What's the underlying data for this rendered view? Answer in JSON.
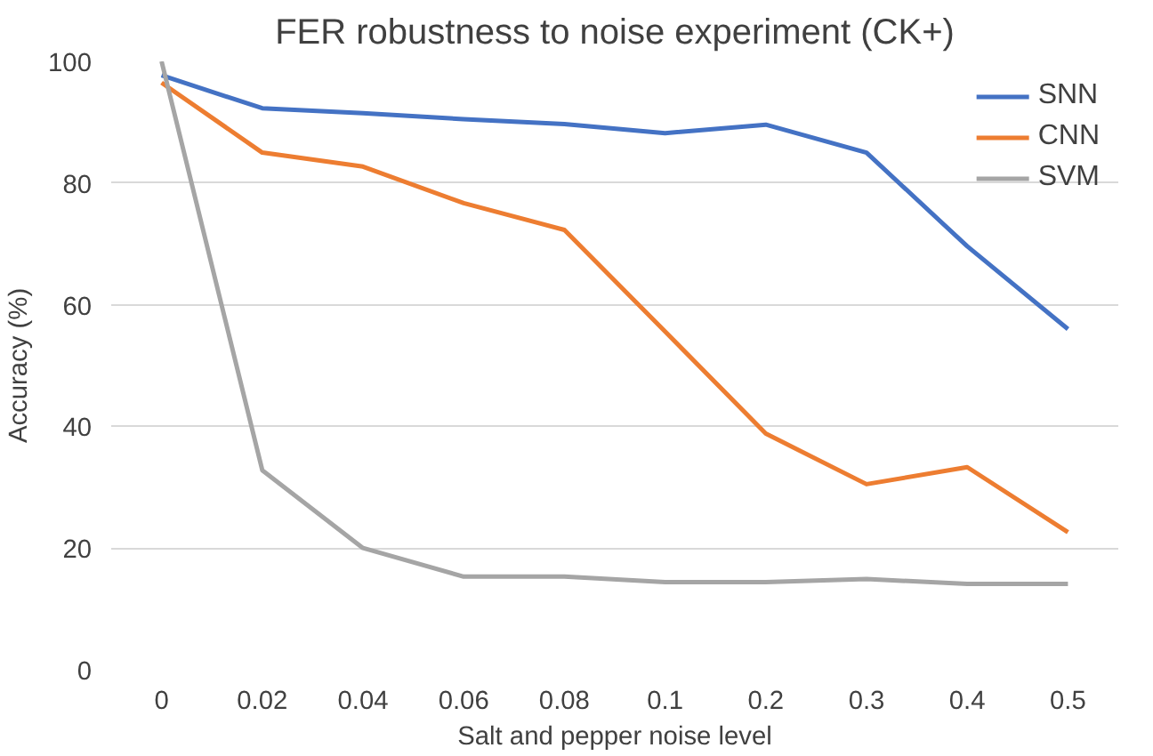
{
  "chart_data": {
    "type": "line",
    "title": "FER robustness to noise experiment (CK+)",
    "xlabel": "Salt and pepper noise level",
    "ylabel": "Accuracy (%)",
    "categories": [
      "0",
      "0.02",
      "0.04",
      "0.06",
      "0.08",
      "0.1",
      "0.2",
      "0.3",
      "0.4",
      "0.5"
    ],
    "series": [
      {
        "name": "SNN",
        "color": "#4472c4",
        "values": [
          97.7,
          92.3,
          91.5,
          90.5,
          89.7,
          88.2,
          89.6,
          85,
          69.6,
          56
        ]
      },
      {
        "name": "CNN",
        "color": "#ed7d31",
        "values": [
          96.5,
          85,
          82.7,
          76.7,
          72.3,
          55.6,
          38.8,
          30.5,
          33.3,
          22.6
        ]
      },
      {
        "name": "SVM",
        "color": "#a5a5a5",
        "values": [
          100,
          32.8,
          20,
          15.3,
          15.3,
          14.4,
          14.4,
          14.9,
          14.1,
          14.1
        ]
      }
    ],
    "ylim": [
      0,
      100
    ],
    "yticks": [
      0,
      20,
      40,
      60,
      80,
      100
    ],
    "grid": "y",
    "legend": "top right",
    "marker": "none",
    "line_style": "solid"
  }
}
